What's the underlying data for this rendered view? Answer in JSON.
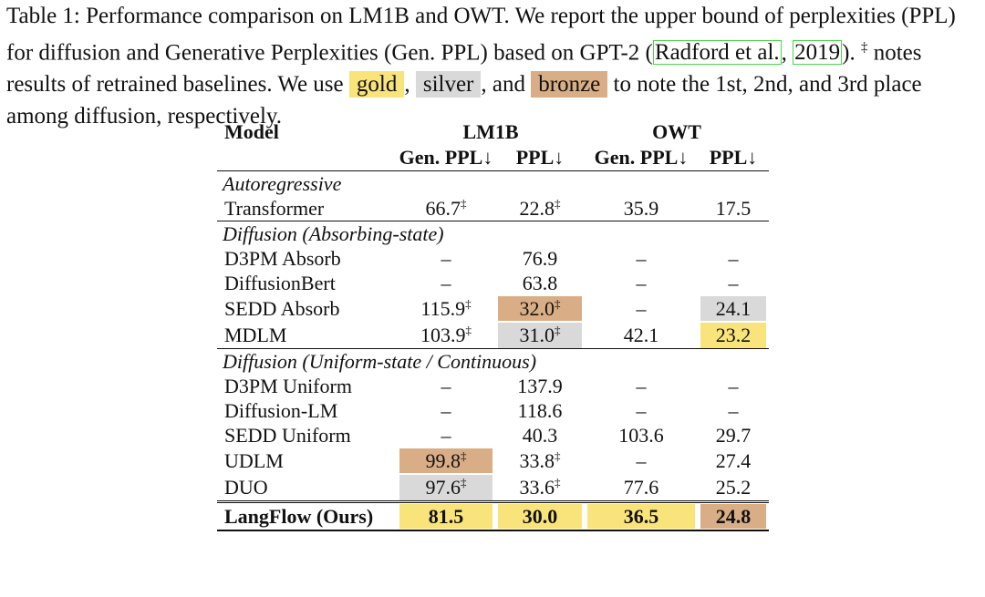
{
  "caption": {
    "lead": "Table 1: Performance comparison on LM1B and OWT. We report the upper bound of perplexities (PPL) for diffusion and Generative Perplexities (Gen. PPL) based on GPT-2 (",
    "cite_author": "Radford et al.",
    "cite_sep": ", ",
    "cite_year": "2019",
    "after_cite": "). ",
    "dagger": "‡",
    "after_dagger": " notes results of retrained baselines. We use ",
    "gold": "gold",
    "sep1": ", ",
    "silver": "silver",
    "sep2": ", and ",
    "bronze": "bronze",
    "tail": " to note the 1st, 2nd, and 3rd place among diffusion, respectively."
  },
  "highlight_colors": {
    "gold": "#f9e47b",
    "silver": "#d9d9d9",
    "bronze": "#d9ae86"
  },
  "table": {
    "header": {
      "model": "Model",
      "groups": [
        "LM1B",
        "OWT"
      ],
      "columns": [
        "Gen. PPL↓",
        "PPL↓",
        "Gen. PPL↓",
        "PPL↓"
      ]
    },
    "sections": [
      {
        "title": "Autoregressive",
        "rows": [
          {
            "name": "Transformer",
            "cells": [
              {
                "text": "66.7",
                "note": "‡"
              },
              {
                "text": "22.8",
                "note": "‡"
              },
              {
                "text": "35.9"
              },
              {
                "text": "17.5"
              }
            ]
          }
        ]
      },
      {
        "title": "Diffusion (Absorbing-state)",
        "rows": [
          {
            "name": "D3PM Absorb",
            "cells": [
              {
                "text": "–"
              },
              {
                "text": "76.9"
              },
              {
                "text": "–"
              },
              {
                "text": "–"
              }
            ]
          },
          {
            "name": "DiffusionBert",
            "cells": [
              {
                "text": "–"
              },
              {
                "text": "63.8"
              },
              {
                "text": "–"
              },
              {
                "text": "–"
              }
            ]
          },
          {
            "name": "SEDD Absorb",
            "cells": [
              {
                "text": "115.9",
                "note": "‡"
              },
              {
                "text": "32.0",
                "note": "‡",
                "highlight": "bronze"
              },
              {
                "text": "–"
              },
              {
                "text": "24.1",
                "highlight": "silver"
              }
            ]
          },
          {
            "name": "MDLM",
            "cells": [
              {
                "text": "103.9",
                "note": "‡"
              },
              {
                "text": "31.0",
                "note": "‡",
                "highlight": "silver"
              },
              {
                "text": "42.1"
              },
              {
                "text": "23.2",
                "highlight": "gold"
              }
            ]
          }
        ]
      },
      {
        "title": "Diffusion (Uniform-state / Continuous)",
        "rows": [
          {
            "name": "D3PM Uniform",
            "cells": [
              {
                "text": "–"
              },
              {
                "text": "137.9"
              },
              {
                "text": "–"
              },
              {
                "text": "–"
              }
            ]
          },
          {
            "name": "Diffusion-LM",
            "cells": [
              {
                "text": "–"
              },
              {
                "text": "118.6"
              },
              {
                "text": "–"
              },
              {
                "text": "–"
              }
            ]
          },
          {
            "name": "SEDD Uniform",
            "cells": [
              {
                "text": "–"
              },
              {
                "text": "40.3"
              },
              {
                "text": "103.6"
              },
              {
                "text": "29.7"
              }
            ]
          },
          {
            "name": "UDLM",
            "cells": [
              {
                "text": "99.8",
                "note": "‡",
                "highlight": "bronze"
              },
              {
                "text": "33.8",
                "note": "‡"
              },
              {
                "text": "–"
              },
              {
                "text": "27.4"
              }
            ]
          },
          {
            "name": "DUO",
            "cells": [
              {
                "text": "97.6",
                "note": "‡",
                "highlight": "silver"
              },
              {
                "text": "33.6",
                "note": "‡"
              },
              {
                "text": "77.6"
              },
              {
                "text": "25.2"
              }
            ]
          }
        ]
      },
      {
        "bold": true,
        "rows": [
          {
            "name": "LangFlow (Ours)",
            "cells": [
              {
                "text": "81.5",
                "highlight": "gold"
              },
              {
                "text": "30.0",
                "highlight": "gold"
              },
              {
                "text": "36.5",
                "highlight": "gold"
              },
              {
                "text": "24.8",
                "highlight": "bronze"
              }
            ]
          }
        ]
      }
    ]
  }
}
